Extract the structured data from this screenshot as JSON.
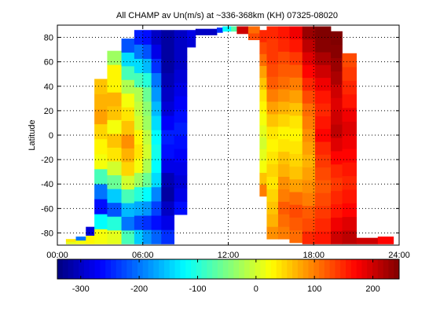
{
  "chart_data": {
    "type": "heatmap",
    "title": "All CHAMP av Un(m/s) at ~336-368km (KH) 07325-08020",
    "xlabel": "",
    "ylabel": "Latitude",
    "xlim": [
      0,
      24
    ],
    "ylim": [
      -90,
      90
    ],
    "x_ticks": [
      0,
      6,
      12,
      18,
      24
    ],
    "x_tick_labels": [
      "00:00",
      "06:00",
      "12:00",
      "18:00",
      "24:00"
    ],
    "y_ticks": [
      -80,
      -60,
      -40,
      -20,
      0,
      20,
      40,
      60,
      80
    ],
    "y_tick_labels": [
      "-80",
      "-60",
      "-40",
      "-20",
      "0",
      "20",
      "40",
      "60",
      "80"
    ],
    "grid": true,
    "colormap": "jet",
    "clim": [
      -340,
      245
    ],
    "colorbar_ticks": [
      -300,
      -200,
      -100,
      0,
      100,
      200
    ],
    "colorbar_tick_labels": [
      "-300",
      "-200",
      "-100",
      "0",
      "100",
      "200"
    ],
    "columns": [
      {
        "x0": 0.6,
        "x1": 1.3,
        "y": [
          -89,
          -85
        ],
        "v": [
          10,
          40
        ]
      },
      {
        "x0": 1.3,
        "x1": 2.0,
        "y": [
          -89,
          -83
        ],
        "v": [
          20,
          -200
        ]
      },
      {
        "x0": 2.0,
        "x1": 2.6,
        "y": [
          -89,
          -75
        ],
        "v": [
          30,
          -290
        ]
      },
      {
        "x0": 2.6,
        "x1": 3.5,
        "y": [
          -89,
          46
        ],
        "v": [
          20,
          -120,
          -260,
          -200,
          -80,
          20,
          30,
          50,
          80,
          70,
          60
        ]
      },
      {
        "x0": 3.5,
        "x1": 4.5,
        "y": [
          -89,
          69
        ],
        "v": [
          10,
          -100,
          -220,
          -150,
          -60,
          0,
          40,
          60,
          20,
          60,
          70,
          30,
          30,
          -30
        ]
      },
      {
        "x0": 4.5,
        "x1": 5.4,
        "y": [
          -89,
          79
        ],
        "v": [
          -80,
          -200,
          -160,
          -80,
          0,
          50,
          70,
          90,
          60,
          40,
          20,
          -20,
          -80,
          -140,
          -220
        ]
      },
      {
        "x0": 5.4,
        "x1": 6.0,
        "y": [
          -89,
          86
        ],
        "v": [
          -150,
          -230,
          -170,
          -100,
          -30,
          20,
          40,
          30,
          0,
          -10,
          -20,
          -80,
          -140,
          -200,
          -250
        ]
      },
      {
        "x0": 6.0,
        "x1": 6.6,
        "y": [
          -89,
          86
        ],
        "v": [
          -180,
          -240,
          -180,
          -120,
          -60,
          -20,
          0,
          -10,
          -30,
          -40,
          -60,
          -100,
          -160,
          -220,
          -260
        ]
      },
      {
        "x0": 6.6,
        "x1": 7.3,
        "y": [
          -89,
          86
        ],
        "v": [
          -210,
          -260,
          -230,
          -190,
          -140,
          -120,
          -110,
          -120,
          -140,
          -160,
          -180,
          -200,
          -240,
          -280,
          -300
        ]
      },
      {
        "x0": 7.3,
        "x1": 8.2,
        "y": [
          -89,
          86
        ],
        "v": [
          -240,
          -280,
          -300,
          -320,
          -310,
          -280,
          -260,
          -250,
          -270,
          -290,
          -300,
          -310,
          -320,
          -320,
          -320
        ]
      },
      {
        "x0": 8.2,
        "x1": 9.1,
        "y": [
          -65,
          86
        ],
        "v": [
          -260,
          -280,
          -290,
          -280,
          -270,
          -260,
          -250,
          -260,
          -270,
          -280,
          -290,
          -300,
          -300,
          -300
        ]
      },
      {
        "x0": 9.1,
        "x1": 9.7,
        "y": [
          72,
          86
        ],
        "v": [
          -290,
          -280
        ]
      },
      {
        "x0": 9.7,
        "x1": 11.2,
        "y": [
          82,
          87
        ],
        "v": [
          -300
        ]
      },
      {
        "x0": 11.2,
        "x1": 11.6,
        "y": [
          84,
          88
        ],
        "v": [
          -240
        ]
      },
      {
        "x0": 11.6,
        "x1": 12.2,
        "y": [
          85,
          89
        ],
        "v": [
          -120
        ]
      },
      {
        "x0": 12.2,
        "x1": 12.6,
        "y": [
          85,
          89
        ],
        "v": [
          -70
        ]
      },
      {
        "x0": 12.6,
        "x1": 13.4,
        "y": [
          83,
          89
        ],
        "v": [
          200
        ]
      },
      {
        "x0": 13.4,
        "x1": 14.2,
        "y": [
          78,
          89
        ],
        "v": [
          130,
          110
        ]
      },
      {
        "x0": 14.2,
        "x1": 14.7,
        "y": [
          -50,
          86
        ],
        "v": [
          100,
          60,
          20,
          10,
          0,
          10,
          20,
          30,
          40,
          60,
          80,
          110,
          130,
          150
        ]
      },
      {
        "x0": 14.7,
        "x1": 15.5,
        "y": [
          -85,
          89
        ],
        "v": [
          90,
          70,
          60,
          50,
          40,
          50,
          40,
          30,
          40,
          60,
          80,
          100,
          120,
          130,
          140,
          140,
          150
        ]
      },
      {
        "x0": 15.5,
        "x1": 16.3,
        "y": [
          -85,
          89
        ],
        "v": [
          100,
          110,
          120,
          100,
          90,
          70,
          60,
          40,
          30,
          50,
          70,
          90,
          110,
          120,
          130,
          150,
          160
        ]
      },
      {
        "x0": 16.3,
        "x1": 17.2,
        "y": [
          -88,
          89
        ],
        "v": [
          110,
          120,
          130,
          110,
          80,
          60,
          50,
          40,
          30,
          40,
          60,
          80,
          100,
          120,
          140,
          160,
          180
        ]
      },
      {
        "x0": 17.2,
        "x1": 18.1,
        "y": [
          -89,
          89
        ],
        "v": [
          150,
          130,
          120,
          100,
          90,
          80,
          70,
          80,
          90,
          100,
          110,
          130,
          150,
          170,
          190,
          210,
          230
        ]
      },
      {
        "x0": 18.1,
        "x1": 19.2,
        "y": [
          -89,
          89
        ],
        "v": [
          160,
          150,
          140,
          130,
          120,
          130,
          140,
          150,
          170,
          160,
          150,
          160,
          180,
          200,
          220,
          240,
          245
        ]
      },
      {
        "x0": 19.2,
        "x1": 20.0,
        "y": [
          -89,
          85
        ],
        "v": [
          200,
          180,
          160,
          150,
          140,
          150,
          170,
          190,
          210,
          200,
          190,
          200,
          220,
          230,
          240,
          245
        ]
      },
      {
        "x0": 20.0,
        "x1": 21.0,
        "y": [
          -89,
          67
        ],
        "v": [
          210,
          190,
          170,
          160,
          150,
          160,
          170,
          180,
          190,
          180,
          160,
          150,
          140,
          130
        ]
      },
      {
        "x0": 21.0,
        "x1": 22.5,
        "y": [
          -89,
          -84
        ],
        "v": [
          200
        ]
      },
      {
        "x0": 22.5,
        "x1": 23.6,
        "y": [
          -89,
          -83
        ],
        "v": [
          170
        ]
      }
    ]
  }
}
